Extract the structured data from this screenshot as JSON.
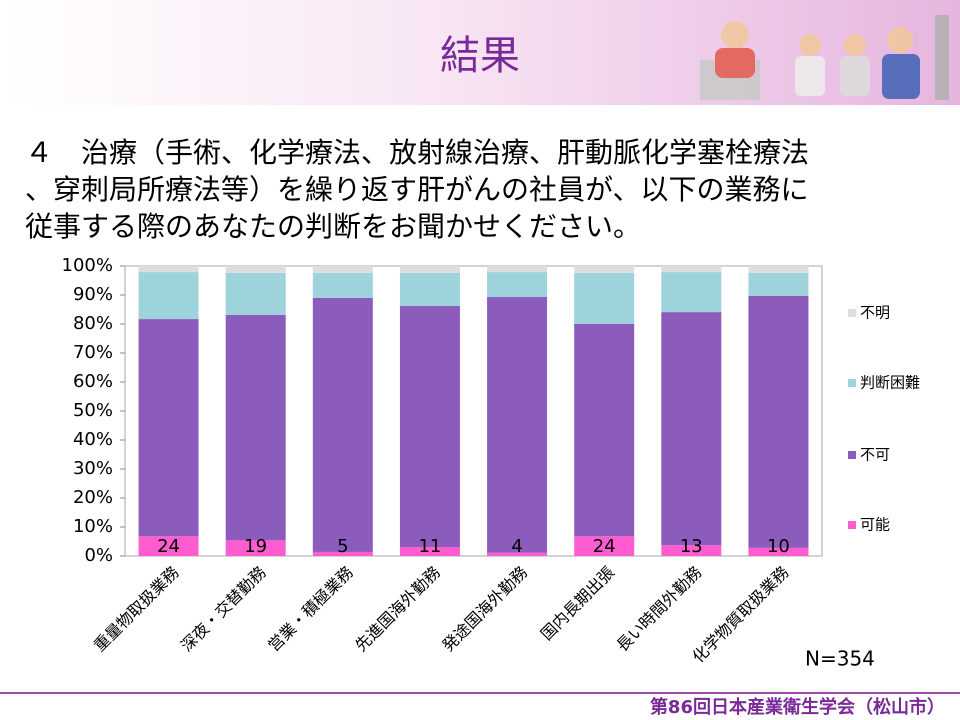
{
  "slide_title": "結果",
  "question_lines": [
    "４　治療（手術、化学療法、放射線治療、肝動脈化学塞栓療法",
    "、穿刺局所療法等）を繰り返す肝がんの社員が、以下の業務に",
    "従事する際のあなたの判断をお聞かせください。"
  ],
  "footer": "第86回日本産業衛生学会（松山市）",
  "chart_data": {
    "type": "stacked_bar",
    "categories": [
      "重量物取扱業務",
      "深夜・交替勤務",
      "営業・積極業務",
      "先進国海外勤務",
      "発途国海外勤務",
      "国内長期出張",
      "長い時間外勤務",
      "化学物質取扱業務"
    ],
    "series": [
      {
        "name": "可能",
        "color": "#ff5ccf",
        "values": [
          6.8,
          5.4,
          1.4,
          3.1,
          1.1,
          6.8,
          3.7,
          2.8
        ]
      },
      {
        "name": "不可",
        "color": "#8c5cbc",
        "values": [
          74.9,
          77.7,
          87.6,
          83.1,
          88.2,
          73.2,
          80.4,
          86.9
        ]
      },
      {
        "name": "判断困難",
        "color": "#9fd3db",
        "values": [
          16.2,
          14.5,
          8.6,
          11.4,
          8.6,
          17.6,
          13.8,
          7.9
        ]
      },
      {
        "name": "不明",
        "color": "#dedede",
        "values": [
          2.1,
          2.4,
          2.4,
          2.4,
          2.1,
          2.4,
          2.1,
          2.4
        ]
      }
    ],
    "bar_count_labels": [
      24,
      19,
      5,
      11,
      4,
      24,
      13,
      10
    ],
    "ylim": [
      0,
      100
    ],
    "yticks": [
      {
        "value": 0,
        "label": "0%"
      },
      {
        "value": 10,
        "label": "10%"
      },
      {
        "value": 20,
        "label": "20%"
      },
      {
        "value": 30,
        "label": "30%"
      },
      {
        "value": 40,
        "label": "40%"
      },
      {
        "value": 50,
        "label": "50%"
      },
      {
        "value": 60,
        "label": "60%"
      },
      {
        "value": 70,
        "label": "70%"
      },
      {
        "value": 80,
        "label": "80%"
      },
      {
        "value": 90,
        "label": "90%"
      },
      {
        "value": 100,
        "label": "100%"
      }
    ],
    "grid": false,
    "legend_position": "right",
    "annotation": "N=354"
  }
}
